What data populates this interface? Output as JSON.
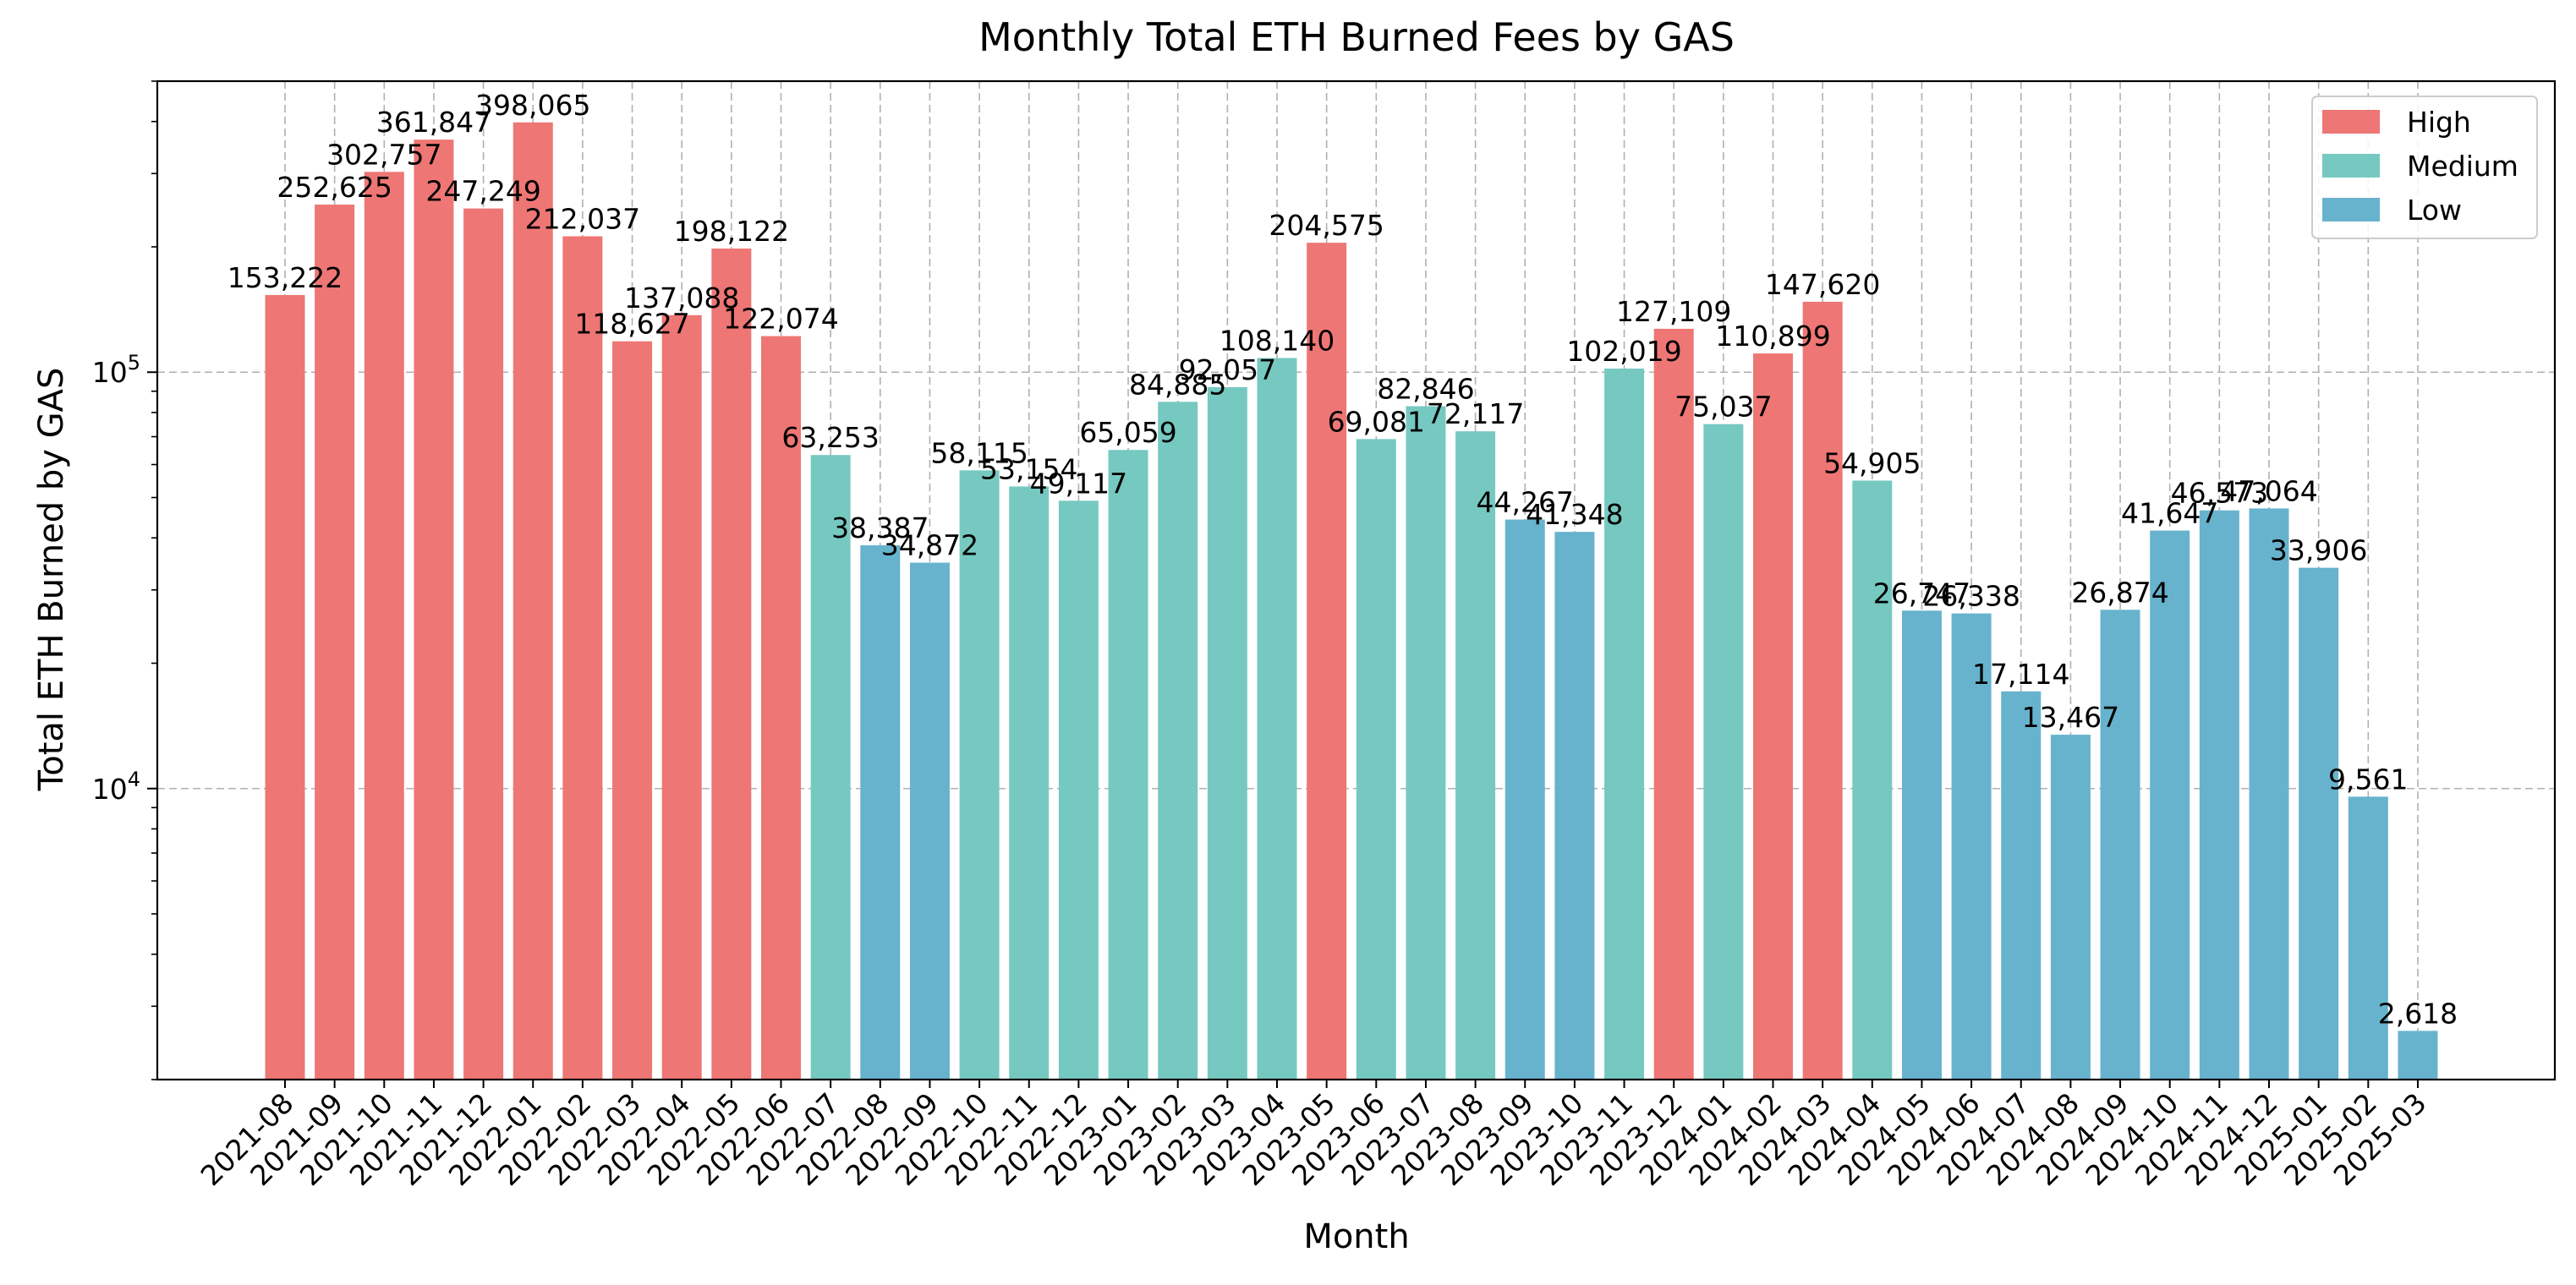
{
  "chart_data": {
    "type": "bar",
    "title": "Monthly Total ETH Burned Fees by GAS",
    "xlabel": "Month",
    "ylabel": "Total ETH Burned by GAS",
    "yscale": "log",
    "ylim": [
      2000,
      500000
    ],
    "yticks": [
      {
        "value": 10000,
        "base": "10",
        "exp": "4"
      },
      {
        "value": 100000,
        "base": "10",
        "exp": "5"
      }
    ],
    "grid": true,
    "legend_position": "top-right",
    "legend": [
      {
        "name": "High",
        "color": "#EE7674"
      },
      {
        "name": "Medium",
        "color": "#76C9C1"
      },
      {
        "name": "Low",
        "color": "#67B3CE"
      }
    ],
    "categories": [
      "2021-08",
      "2021-09",
      "2021-10",
      "2021-11",
      "2021-12",
      "2022-01",
      "2022-02",
      "2022-03",
      "2022-04",
      "2022-05",
      "2022-06",
      "2022-07",
      "2022-08",
      "2022-09",
      "2022-10",
      "2022-11",
      "2022-12",
      "2023-01",
      "2023-02",
      "2023-03",
      "2023-04",
      "2023-05",
      "2023-06",
      "2023-07",
      "2023-08",
      "2023-09",
      "2023-10",
      "2023-11",
      "2023-12",
      "2024-01",
      "2024-02",
      "2024-03",
      "2024-04",
      "2024-05",
      "2024-06",
      "2024-07",
      "2024-08",
      "2024-09",
      "2024-10",
      "2024-11",
      "2024-12",
      "2025-01",
      "2025-02",
      "2025-03"
    ],
    "values": [
      153222,
      252625,
      302757,
      361847,
      247249,
      398065,
      212037,
      118627,
      137088,
      198122,
      122074,
      63253,
      38387,
      34872,
      58115,
      53154,
      49117,
      65059,
      84885,
      92057,
      108140,
      204575,
      69081,
      82846,
      72117,
      44267,
      41348,
      102019,
      127109,
      75037,
      110899,
      147620,
      54905,
      26747,
      26338,
      17114,
      13467,
      26874,
      41647,
      46573,
      47064,
      33906,
      9561,
      2618
    ],
    "labels": [
      "153,222",
      "252,625",
      "302,757",
      "361,847",
      "247,249",
      "398,065",
      "212,037",
      "118,627",
      "137,088",
      "198,122",
      "122,074",
      "63,253",
      "38,387",
      "34,872",
      "58,115",
      "53,154",
      "49,117",
      "65,059",
      "84,885",
      "92,057",
      "108,140",
      "204,575",
      "69,081",
      "82,846",
      "72,117",
      "44,267",
      "41,348",
      "102,019",
      "127,109",
      "75,037",
      "110,899",
      "147,620",
      "54,905",
      "26,747",
      "26,338",
      "17,114",
      "13,467",
      "26,874",
      "41,647",
      "46,573",
      "47,064",
      "33,906",
      "9,561",
      "2,618"
    ],
    "gas_level": [
      "High",
      "High",
      "High",
      "High",
      "High",
      "High",
      "High",
      "High",
      "High",
      "High",
      "High",
      "Medium",
      "Low",
      "Low",
      "Medium",
      "Medium",
      "Medium",
      "Medium",
      "Medium",
      "Medium",
      "Medium",
      "High",
      "Medium",
      "Medium",
      "Medium",
      "Low",
      "Low",
      "Medium",
      "High",
      "Medium",
      "High",
      "High",
      "Medium",
      "Low",
      "Low",
      "Low",
      "Low",
      "Low",
      "Low",
      "Low",
      "Low",
      "Low",
      "Low",
      "Low"
    ]
  }
}
